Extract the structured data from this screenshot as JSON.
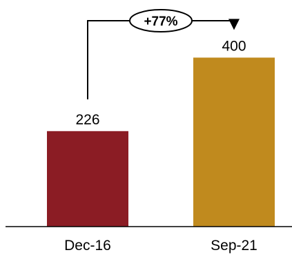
{
  "chart_data": {
    "type": "bar",
    "title": "",
    "xlabel": "",
    "ylabel": "",
    "categories": [
      "Dec-16",
      "Sep-21"
    ],
    "values": [
      226,
      400
    ],
    "value_labels": [
      "226",
      "400"
    ],
    "ylim": [
      0,
      520
    ],
    "grid": false,
    "legend": "none",
    "colors": [
      "#8B1C24",
      "#C08A1E"
    ],
    "annotation": {
      "from": "Dec-16",
      "to": "Sep-21",
      "label": "+77%"
    }
  }
}
